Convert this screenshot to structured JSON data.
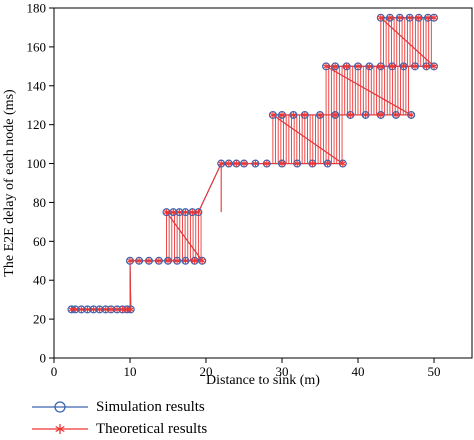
{
  "chart_data": {
    "type": "line",
    "xlabel": "Distance to sink (m)",
    "ylabel": "The E2E delay of each node (ms)",
    "xlim": [
      0,
      55
    ],
    "ylim": [
      0,
      180
    ],
    "xticks": [
      0,
      10,
      20,
      30,
      40,
      50
    ],
    "yticks": [
      0,
      20,
      40,
      60,
      80,
      100,
      120,
      140,
      160,
      180
    ],
    "grid": false,
    "legend_position": "below",
    "series": [
      {
        "name": "Simulation results",
        "marker": "circle",
        "color": "#3a66b0",
        "points": [
          [
            2.3,
            25
          ],
          [
            2.8,
            25
          ],
          [
            3.6,
            25
          ],
          [
            4.4,
            25
          ],
          [
            5.2,
            25
          ],
          [
            6.0,
            25
          ],
          [
            6.8,
            25
          ],
          [
            7.5,
            25
          ],
          [
            8.3,
            25
          ],
          [
            9.0,
            25
          ],
          [
            9.6,
            25
          ],
          [
            10.1,
            25
          ],
          [
            10.0,
            50
          ],
          [
            11.2,
            50
          ],
          [
            12.5,
            50
          ],
          [
            13.8,
            50
          ],
          [
            15.0,
            50
          ],
          [
            16.2,
            50
          ],
          [
            17.3,
            50
          ],
          [
            18.5,
            50
          ],
          [
            19.5,
            50
          ],
          [
            14.8,
            75
          ],
          [
            15.7,
            75
          ],
          [
            16.5,
            75
          ],
          [
            17.3,
            75
          ],
          [
            18.2,
            75
          ],
          [
            19.0,
            75
          ],
          [
            22.0,
            100
          ],
          [
            23.0,
            100
          ],
          [
            24.0,
            100
          ],
          [
            25.0,
            100
          ],
          [
            26.5,
            100
          ],
          [
            28.0,
            100
          ],
          [
            30.0,
            100
          ],
          [
            32.0,
            100
          ],
          [
            34.0,
            100
          ],
          [
            36.0,
            100
          ],
          [
            38.0,
            100
          ],
          [
            28.8,
            125
          ],
          [
            30.0,
            125
          ],
          [
            31.5,
            125
          ],
          [
            33.0,
            125
          ],
          [
            35.0,
            125
          ],
          [
            37.0,
            125
          ],
          [
            39.0,
            125
          ],
          [
            41.0,
            125
          ],
          [
            43.0,
            125
          ],
          [
            45.0,
            125
          ],
          [
            47.0,
            125
          ],
          [
            35.8,
            150
          ],
          [
            37.0,
            150
          ],
          [
            38.5,
            150
          ],
          [
            40.0,
            150
          ],
          [
            41.5,
            150
          ],
          [
            43.0,
            150
          ],
          [
            44.5,
            150
          ],
          [
            46.0,
            150
          ],
          [
            47.5,
            150
          ],
          [
            49.0,
            150
          ],
          [
            50.0,
            150
          ],
          [
            43.0,
            175
          ],
          [
            44.2,
            175
          ],
          [
            45.5,
            175
          ],
          [
            46.8,
            175
          ],
          [
            48.0,
            175
          ],
          [
            49.2,
            175
          ],
          [
            50.0,
            175
          ]
        ]
      },
      {
        "name": "Theoretical results",
        "marker": "star",
        "color": "#ee3535",
        "points": [
          [
            2.3,
            25
          ],
          [
            2.8,
            25
          ],
          [
            3.6,
            25
          ],
          [
            4.4,
            25
          ],
          [
            5.2,
            25
          ],
          [
            6.0,
            25
          ],
          [
            6.8,
            25
          ],
          [
            7.5,
            25
          ],
          [
            8.3,
            25
          ],
          [
            9.0,
            25
          ],
          [
            9.6,
            25
          ],
          [
            10.1,
            25
          ],
          [
            10.0,
            50
          ],
          [
            11.2,
            50
          ],
          [
            12.5,
            50
          ],
          [
            13.8,
            50
          ],
          [
            15.0,
            50
          ],
          [
            16.2,
            50
          ],
          [
            17.3,
            50
          ],
          [
            18.5,
            50
          ],
          [
            19.5,
            50
          ],
          [
            14.8,
            75
          ],
          [
            15.7,
            75
          ],
          [
            16.5,
            75
          ],
          [
            17.3,
            75
          ],
          [
            18.2,
            75
          ],
          [
            19.0,
            75
          ],
          [
            22.0,
            100
          ],
          [
            23.0,
            100
          ],
          [
            24.0,
            100
          ],
          [
            25.0,
            100
          ],
          [
            26.5,
            100
          ],
          [
            28.0,
            100
          ],
          [
            30.0,
            100
          ],
          [
            32.0,
            100
          ],
          [
            34.0,
            100
          ],
          [
            36.0,
            100
          ],
          [
            38.0,
            100
          ],
          [
            28.8,
            125
          ],
          [
            30.0,
            125
          ],
          [
            31.5,
            125
          ],
          [
            33.0,
            125
          ],
          [
            35.0,
            125
          ],
          [
            37.0,
            125
          ],
          [
            39.0,
            125
          ],
          [
            41.0,
            125
          ],
          [
            43.0,
            125
          ],
          [
            45.0,
            125
          ],
          [
            47.0,
            125
          ],
          [
            35.8,
            150
          ],
          [
            37.0,
            150
          ],
          [
            38.5,
            150
          ],
          [
            40.0,
            150
          ],
          [
            41.5,
            150
          ],
          [
            43.0,
            150
          ],
          [
            44.5,
            150
          ],
          [
            46.0,
            150
          ],
          [
            47.5,
            150
          ],
          [
            49.0,
            150
          ],
          [
            50.0,
            150
          ],
          [
            43.0,
            175
          ],
          [
            44.2,
            175
          ],
          [
            45.5,
            175
          ],
          [
            46.8,
            175
          ],
          [
            48.0,
            175
          ],
          [
            49.2,
            175
          ],
          [
            50.0,
            175
          ]
        ]
      }
    ]
  }
}
